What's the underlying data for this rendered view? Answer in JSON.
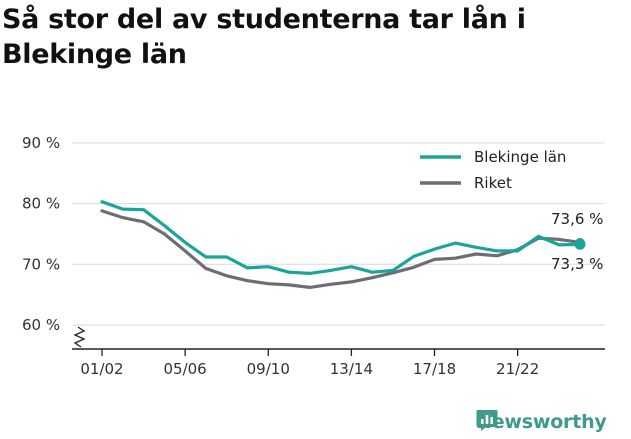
{
  "title": "Så stor del av studenterna tar lån i Blekinge län",
  "brand": {
    "name": "Newsworthy"
  },
  "colors": {
    "blekinge": "#1aa59a",
    "riket": "#6d6d72",
    "grid": "#d9d9d9",
    "axis": "#222222"
  },
  "chart_data": {
    "type": "line",
    "title": "Så stor del av studenterna tar lån i Blekinge län",
    "xlabel": "",
    "ylabel": "",
    "x": [
      "01/02",
      "02/03",
      "03/04",
      "04/05",
      "05/06",
      "06/07",
      "07/08",
      "08/09",
      "09/10",
      "10/11",
      "11/12",
      "12/13",
      "13/14",
      "14/15",
      "15/16",
      "16/17",
      "17/18",
      "18/19",
      "19/20",
      "20/21",
      "21/22",
      "22/23",
      "23/24",
      "24/25"
    ],
    "x_tick_labels": [
      "01/02",
      "05/06",
      "09/10",
      "13/14",
      "17/18",
      "21/22"
    ],
    "y_tick_labels": [
      "90 %",
      "80 %",
      "70 %",
      "60 %"
    ],
    "ylim": [
      57.5,
      90
    ],
    "yticks": [
      60,
      70,
      80,
      90
    ],
    "y_axis_break": true,
    "grid": true,
    "legend_position": "top-right",
    "series": [
      {
        "name": "Blekinge län",
        "color": "#1aa59a",
        "values": [
          80.3,
          79.1,
          79.0,
          76.4,
          73.6,
          71.2,
          71.2,
          69.4,
          69.6,
          68.7,
          68.5,
          69.0,
          69.6,
          68.7,
          69.0,
          71.3,
          72.5,
          73.5,
          72.8,
          72.2,
          72.2,
          74.6,
          73.2,
          73.3
        ],
        "end_label": "73,3 %"
      },
      {
        "name": "Riket",
        "color": "#6d6d72",
        "values": [
          78.8,
          77.7,
          77.0,
          75.0,
          72.2,
          69.3,
          68.1,
          67.3,
          66.8,
          66.6,
          66.2,
          66.7,
          67.1,
          67.8,
          68.6,
          69.5,
          70.8,
          71.0,
          71.7,
          71.4,
          72.4,
          74.3,
          74.1,
          73.6
        ],
        "end_label": "73,6 %"
      }
    ]
  }
}
